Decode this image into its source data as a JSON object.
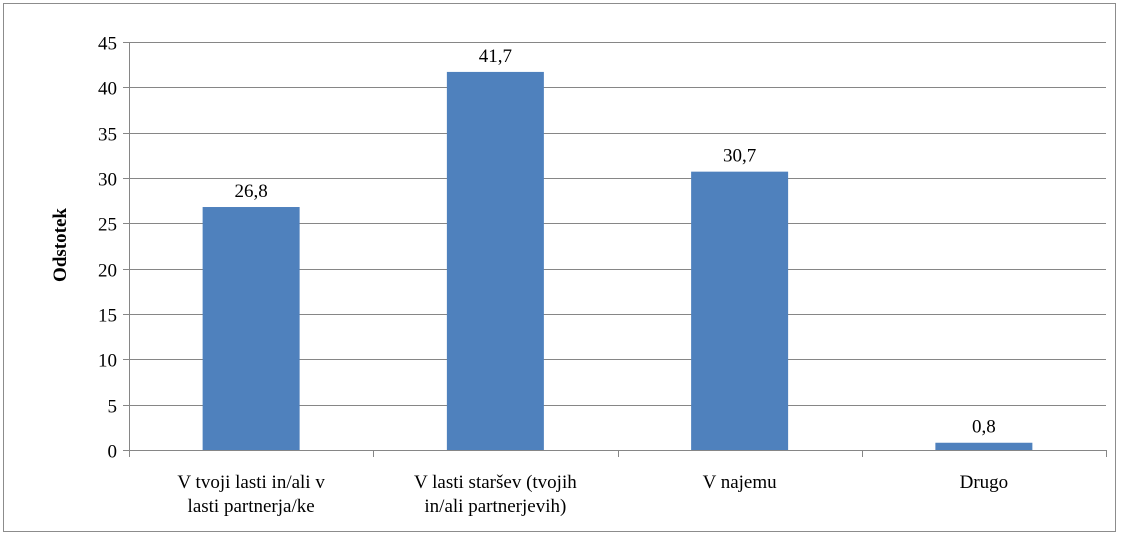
{
  "chart_data": {
    "type": "bar",
    "title": "",
    "xlabel": "",
    "ylabel": "Odstotek",
    "ylim": [
      0,
      45
    ],
    "ytick_step": 5,
    "grid": true,
    "legend": "none",
    "categories": [
      [
        "V tvoji lasti in/ali v",
        "lasti partnerja/ke"
      ],
      [
        "V lasti staršev (tvojih",
        "in/ali partnerjevih)"
      ],
      [
        "V najemu"
      ],
      [
        "Drugo"
      ]
    ],
    "values": [
      26.8,
      41.7,
      30.7,
      0.8
    ],
    "data_labels": [
      "26,8",
      "41,7",
      "30,7",
      "0,8"
    ],
    "bar_color": "#4f81bd",
    "grid_color": "#868686"
  }
}
